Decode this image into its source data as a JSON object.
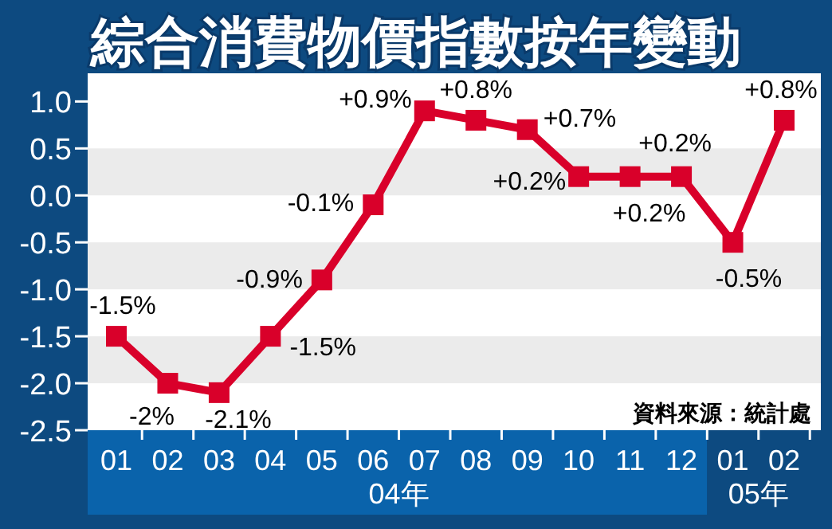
{
  "chart_data": {
    "type": "line",
    "title": "綜合消費物價指數按年變動",
    "categories": [
      "01",
      "02",
      "03",
      "04",
      "05",
      "06",
      "07",
      "08",
      "09",
      "10",
      "11",
      "12",
      "01",
      "02"
    ],
    "series": [
      {
        "color": "#d9002a",
        "values": [
          -1.5,
          -2,
          -2.1,
          -1.5,
          -0.9,
          -0.1,
          0.9,
          0.8,
          0.7,
          0.2,
          0.2,
          0.2,
          -0.5,
          0.8
        ],
        "value_labels": [
          "-1.5%",
          "-2%",
          "-2.1%",
          "-1.5%",
          "-0.9%",
          "-0.1%",
          "+0.9%",
          "+0.8%",
          "+0.7%",
          "+0.2%",
          "+0.2%",
          "+0.2%",
          "-0.5%",
          "+0.8%"
        ]
      }
    ],
    "ylim": [
      -2.5,
      1.3
    ],
    "yticks": [
      {
        "value": 1,
        "label": "1.0"
      },
      {
        "value": 0.5,
        "label": "0.5"
      },
      {
        "value": 0,
        "label": "0.0"
      },
      {
        "value": -0.5,
        "label": "-0.5"
      },
      {
        "value": -1,
        "label": "-1.0"
      },
      {
        "value": -1.5,
        "label": "-1.5"
      },
      {
        "value": -2,
        "label": "-2.0"
      },
      {
        "value": -2.5,
        "label": "-2.5"
      }
    ],
    "bands": [
      {
        "axis": "y",
        "from": 0,
        "to": 0.5,
        "color": "#ebebeb"
      },
      {
        "axis": "y",
        "from": -1,
        "to": -0.5,
        "color": "#ebebeb"
      },
      {
        "axis": "y",
        "from": -2,
        "to": -1.5,
        "color": "#ebebeb"
      }
    ],
    "marker": "square",
    "line_style": "solid",
    "annotations": [
      "04年",
      "05年",
      "資料來源：統計處"
    ]
  }
}
